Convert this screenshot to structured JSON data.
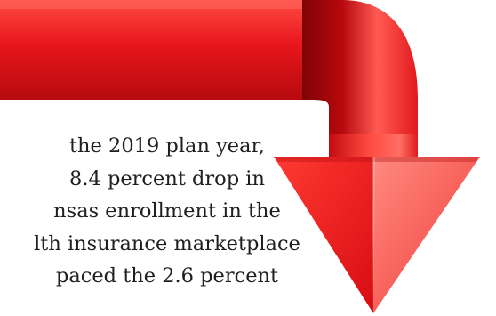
{
  "caption": {
    "lines": [
      "the 2019 plan year,",
      "8.4 percent drop in",
      "nsas enrollment in the",
      "lth insurance marketplace",
      "paced the 2.6 percent"
    ]
  },
  "graphic": {
    "icon": "curved-down-arrow-icon",
    "colors": {
      "arrow_main": "#e8161b",
      "arrow_light": "#ff5a52",
      "arrow_dark": "#a8080c",
      "text": "#1f1f1f",
      "background": "#ffffff"
    }
  }
}
